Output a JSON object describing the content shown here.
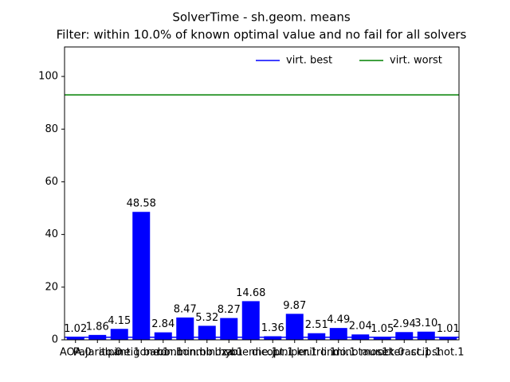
{
  "chart_data": {
    "type": "bar",
    "title": "SolverTime - sh.geom. means",
    "subtitle": "Filter: within 10.0% of known optimal value and no fail for all solvers",
    "categories": [
      "AOA.0",
      "Pajarito.0",
      "alpine.1",
      "antigone.1",
      "baron.1",
      "bonmin.bb",
      "bonmin.hyb",
      "bza.1",
      "couenne.1",
      "dicopt.1",
      "juniper.1",
      "knitro.1",
      "lindo.1",
      "minotaur.1",
      "mosek.0",
      "octeract.1",
      "scip.1",
      "shot.1"
    ],
    "values": [
      1.02,
      1.86,
      4.15,
      48.58,
      2.84,
      8.47,
      5.32,
      8.27,
      14.68,
      1.36,
      9.87,
      2.51,
      4.49,
      2.04,
      1.05,
      2.94,
      3.1,
      1.01
    ],
    "value_labels": [
      "1.02",
      "1.86",
      "4.15",
      "48.58",
      "2.84",
      "8.47",
      "5.32",
      "8.27",
      "14.68",
      "1.36",
      "9.87",
      "2.51",
      "4.49",
      "2.04",
      "1.05",
      "2.94",
      "3.10",
      "1.01"
    ],
    "color": "#0000ff",
    "reference_lines": [
      {
        "name": "virt. best",
        "color": "#0000ff",
        "value": 1.0
      },
      {
        "name": "virt. worst",
        "color": "#008000",
        "value": 93.0
      }
    ],
    "legend": "upper right",
    "ylim": [
      0,
      111.2
    ],
    "yticks": [
      0,
      20,
      40,
      60,
      80,
      100
    ]
  }
}
